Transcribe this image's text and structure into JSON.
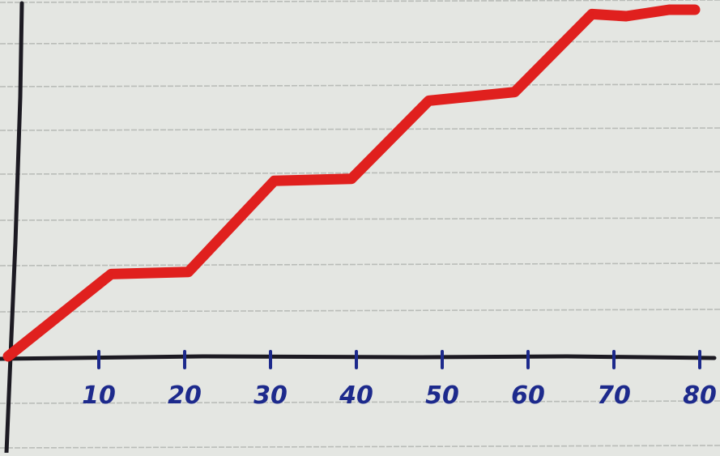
{
  "chart_data": {
    "type": "line",
    "title": "",
    "xlabel": "",
    "ylabel": "",
    "grid": true,
    "xlim": [
      0,
      80
    ],
    "x_ticks": [
      10,
      20,
      30,
      40,
      50,
      60,
      70,
      80
    ],
    "x_tick_labels": [
      "10",
      "20",
      "30",
      "40",
      "50",
      "60",
      "70",
      "80"
    ],
    "series": [
      {
        "x": [
          0,
          12,
          21,
          31,
          40,
          49,
          59,
          68,
          72,
          77,
          80
        ],
        "y": [
          0,
          19,
          19.5,
          40.5,
          41,
          59,
          61,
          79,
          78.5,
          80,
          80
        ]
      }
    ],
    "colors": {
      "paper": "#e4e6e2",
      "rule": "#b9bcb8",
      "axis": "#1c1a22",
      "line": "#e0201e",
      "tick_label": "#1d2a8c"
    }
  }
}
